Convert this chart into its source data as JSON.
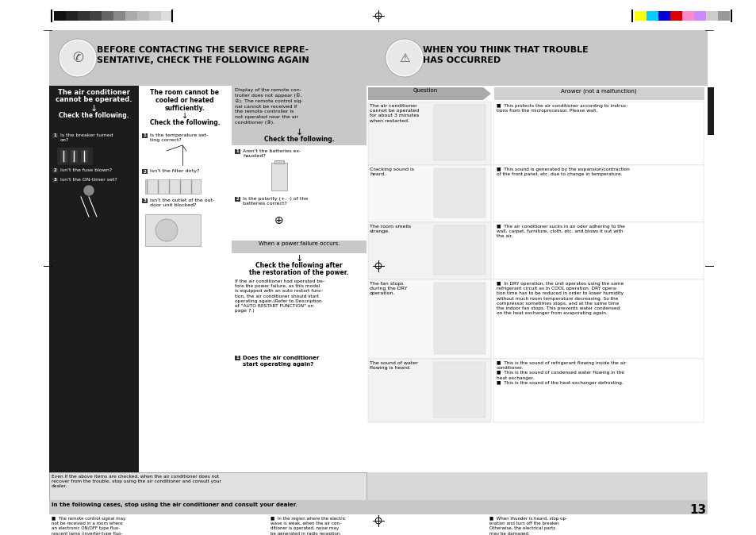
{
  "page_bg": "#ffffff",
  "header_bg": "#c8c8c8",
  "header_text_left1": "BEFORE CONTACTING THE SERVICE REPRE-",
  "header_text_left2": "SENTATIVE, CHECK THE FOLLOWING AGAIN",
  "header_text_right1": "WHEN YOU THINK THAT TROUBLE",
  "header_text_right2": "HAS OCCURRED",
  "col1_title1": "The air conditioner",
  "col1_title2": "cannot be operated.",
  "col1_title3": "↓",
  "col1_title4": "Check the following.",
  "col1_bg": "#1c1c1c",
  "col1_text_color": "#ffffff",
  "col2_title1": "The room cannot be",
  "col2_title2": "cooled or heated",
  "col2_title3": "sufficiently.",
  "col2_title4": "↓",
  "col2_title5": "Check the following.",
  "col2_bg": "#ffffff",
  "col3_header_bg": "#c8c8c8",
  "col3_header_text": "Display of the remote con-\ntroller does not appear (①,\n②). The remote control sig-\nnal cannot be received if\nthe remote controller is\nnot operated near the air\nconditioner (③).",
  "col3_check_text": "↓\nCheck the following.",
  "col3_power_bg": "#c8c8c8",
  "col3_power_text": "When a power failure occurs.",
  "col3_after_power1": "↓",
  "col3_after_power2": "Check the following after",
  "col3_after_power3": "the restoration of the power.",
  "col3_body_text": "If the air conditioner had operated be-\nfore the power failure, as this model\nis equipped with an auto restart func-\ntion, the air conditioner should start\noperating again.(Refer to Description\nof \"AUTO RESTART FUNCTION\" on\npage 7.)",
  "col3_final_text": "Does the air conditioner\nstart operating again?",
  "question_header": "Question",
  "answer_header": "Answer (not a malfunction)",
  "right_tab_color": "#1a1a1a",
  "bottom_warn_text": "Even if the above items are checked, when the air conditioner does not\nrecover from the trouble, stop using the air conditioner and consult your\ndealer.",
  "bottom_warn_bg": "#e0e0e0",
  "bottom_cases_bg": "#c8c8c8",
  "bottom_cases_title": "In the following cases, stop using the air conditioner and consult your dealer.",
  "page_number": "13",
  "color_bar_left": [
    "#111111",
    "#222222",
    "#333333",
    "#444444",
    "#666666",
    "#888888",
    "#aaaaaa",
    "#bbbbbb",
    "#cccccc",
    "#dddddd"
  ],
  "color_bar_right": [
    "#ffff00",
    "#00ccff",
    "#0000dd",
    "#dd0000",
    "#ff88cc",
    "#cc88ff",
    "#cccccc",
    "#999999"
  ],
  "left_col_items": [
    {
      "num": "1",
      "text": "Is the breaker turned\non?"
    },
    {
      "num": "2",
      "text": "Isn't the fuse blown?"
    },
    {
      "num": "3",
      "text": "Isn't the ON-timer set?"
    }
  ],
  "col2_items": [
    {
      "num": "1",
      "text": "Is the temperature set-\nting correct?"
    },
    {
      "num": "2",
      "text": "Isn't the filter dirty?"
    },
    {
      "num": "3",
      "text": "Isn't the outlet of the out-\ndoor unit blocked?"
    }
  ],
  "col3_items": [
    {
      "num": "1",
      "text": "Aren't the batteries ex-\nhausted?"
    },
    {
      "num": "2",
      "text": "Is the polarity (+, -) of the\nbatteries correct?"
    }
  ],
  "questions": [
    "The air conditioner\ncannot be operated\nfor about 3 minutes\nwhen restarted.",
    "Cracking sound is\nheard.",
    "The room smells\nstrange.",
    "The fan stops\nduring the DRY\noperation.",
    "The sound of water\nflowing is heard."
  ],
  "answers": [
    "■  This protects the air conditioner according to instruc-\ntions from the microprocessor. Please wait.",
    "■  This sound is generated by the expansion/contraction\nof the front panel, etc. due to change in temperature.",
    "■  The air conditioner sucks in an odor adhering to the\nwall, carpet, furniture, cloth, etc. and blows it out with\nthe air.",
    "■  In DRY operation, the unit operates using the same\nrefrigerant circuit as in COOL operation. DRY opera-\ntion time has to be reduced in order to lower humidity\nwithout much room temperature decreasing. So the\ncompressor sometimes stops, and at the same time\nthe indoor fan stops. This prevents water condensed\non the heat exchanger from evaporating again.",
    "■  This is the sound of refrigerant flowing inside the air\nconditioner.\n■  This is the sound of condensed water flowing in the\nheat exchanger.\n■  This is the sound of the heat exchanger defrosting."
  ],
  "bottom_col1": "■  The remote control signal may\nnot be received in a room where\nan electronic ON/OFF type fluo-\nrescent lamp (inverter-type fluo-\nrescent lamp, etc.) is used.",
  "bottom_col2": "■  In the region where the electric\nwave is weak, when the air con-\nditioner is operated, noise may\nbe generated in radio reception.",
  "bottom_col3": "■  When thunder is heard, stop op-\neration and turn off the breaker.\nOtherwise, the electrical parts\nmay be damaged."
}
